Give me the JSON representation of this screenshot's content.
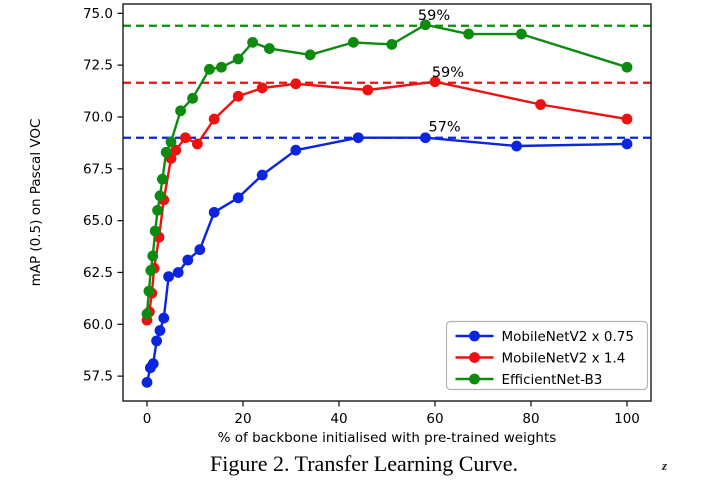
{
  "figure": {
    "caption": "Figure 2. Transfer Learning Curve.",
    "artifact_glyph": "z"
  },
  "chart_data": {
    "type": "line",
    "title": "",
    "xlabel": "% of backbone initialised with pre-trained weights",
    "ylabel": "mAP (0.5) on Pascal VOC",
    "xlim": [
      -5,
      105
    ],
    "ylim": [
      56.3,
      75.45
    ],
    "grid": false,
    "xticks": [
      "0",
      "20",
      "40",
      "60",
      "80",
      "100"
    ],
    "xtick_values": [
      0,
      20,
      40,
      60,
      80,
      100
    ],
    "yticks": [
      "57.5",
      "60.0",
      "62.5",
      "65.0",
      "67.5",
      "70.0",
      "72.5",
      "75.0"
    ],
    "ytick_values": [
      57.5,
      60.0,
      62.5,
      65.0,
      67.5,
      70.0,
      72.5,
      75.0
    ],
    "legend_position": "lower right",
    "series": [
      {
        "name": "MobileNetV2 x 0.75",
        "color": "#0b24e0",
        "points": [
          [
            0,
            57.2
          ],
          [
            0.7,
            57.9
          ],
          [
            1.3,
            58.1
          ],
          [
            2,
            59.2
          ],
          [
            2.7,
            59.7
          ],
          [
            3.5,
            60.3
          ],
          [
            4.5,
            62.3
          ],
          [
            6.5,
            62.5
          ],
          [
            8.5,
            63.1
          ],
          [
            11,
            63.6
          ],
          [
            14,
            65.4
          ],
          [
            19,
            66.1
          ],
          [
            24,
            67.2
          ],
          [
            31,
            68.4
          ],
          [
            44,
            69.0
          ],
          [
            58,
            69.0
          ],
          [
            77,
            68.6
          ],
          [
            100,
            68.7
          ]
        ]
      },
      {
        "name": "MobileNetV2 x 1.4",
        "color": "#ee1111",
        "points": [
          [
            0,
            60.2
          ],
          [
            0.5,
            60.6
          ],
          [
            1,
            61.5
          ],
          [
            1.5,
            62.7
          ],
          [
            2.5,
            64.2
          ],
          [
            3.5,
            66.0
          ],
          [
            5,
            68.0
          ],
          [
            6,
            68.4
          ],
          [
            8,
            69.0
          ],
          [
            10.5,
            68.7
          ],
          [
            14,
            69.9
          ],
          [
            19,
            71.0
          ],
          [
            24,
            71.4
          ],
          [
            31,
            71.6
          ],
          [
            46,
            71.3
          ],
          [
            60,
            71.7
          ],
          [
            82,
            70.6
          ],
          [
            100,
            69.9
          ]
        ]
      },
      {
        "name": "EfficientNet-B3",
        "color": "#0e8a0e",
        "points": [
          [
            0,
            60.5
          ],
          [
            0.4,
            61.6
          ],
          [
            0.8,
            62.6
          ],
          [
            1.2,
            63.3
          ],
          [
            1.7,
            64.5
          ],
          [
            2.2,
            65.5
          ],
          [
            2.7,
            66.2
          ],
          [
            3.2,
            67.0
          ],
          [
            4,
            68.3
          ],
          [
            5,
            68.8
          ],
          [
            7,
            70.3
          ],
          [
            9.5,
            70.9
          ],
          [
            13,
            72.3
          ],
          [
            15.5,
            72.4
          ],
          [
            19,
            72.8
          ],
          [
            22,
            73.6
          ],
          [
            25.5,
            73.3
          ],
          [
            34,
            73.0
          ],
          [
            43,
            73.6
          ],
          [
            51,
            73.5
          ],
          [
            58,
            74.45
          ],
          [
            67,
            74.0
          ],
          [
            78,
            74.0
          ],
          [
            100,
            72.4
          ]
        ]
      }
    ],
    "reference_lines": [
      {
        "value": 74.4,
        "color": "#0e8a0e",
        "label": "59%",
        "label_x": 59.8
      },
      {
        "value": 71.65,
        "color": "#ee1111",
        "label": "59%",
        "label_x": 62.7
      },
      {
        "value": 69.0,
        "color": "#0b24e0",
        "label": "57%",
        "label_x": 62.0
      }
    ]
  }
}
